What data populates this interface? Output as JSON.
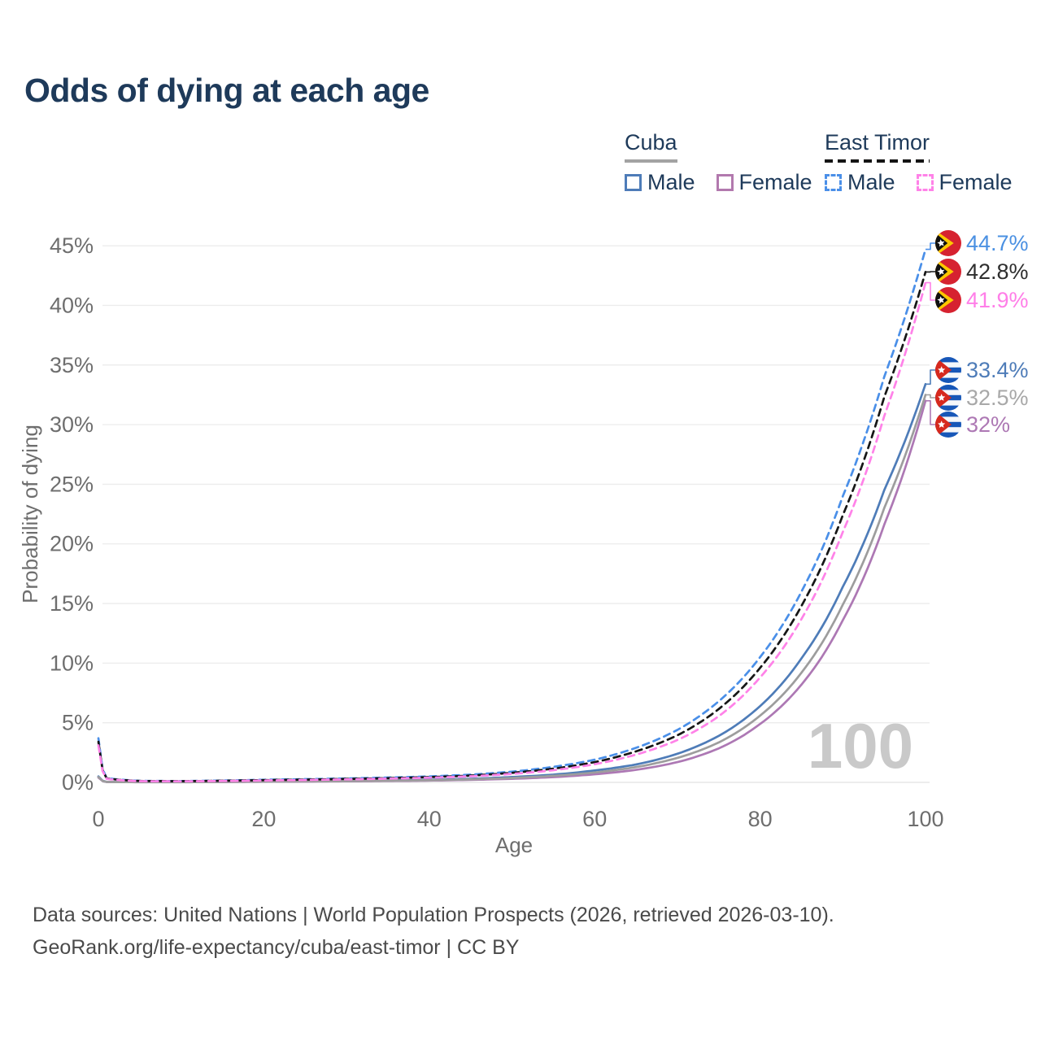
{
  "title": "Odds of dying at each age",
  "watermark": "100",
  "legend": {
    "groups": [
      {
        "name": "Cuba",
        "line_style": "solid",
        "underline_color": "#a3a3a3",
        "items": [
          {
            "label": "Male",
            "color": "#4e7cb8"
          },
          {
            "label": "Female",
            "color": "#b279ae"
          }
        ]
      },
      {
        "name": "East Timor",
        "line_style": "dashed",
        "underline_color": "#141414",
        "items": [
          {
            "label": "Male",
            "color": "#4a8fe8"
          },
          {
            "label": "Female",
            "color": "#ff82e8"
          }
        ]
      }
    ]
  },
  "chart_data": {
    "type": "line",
    "title": "Odds of dying at each age",
    "xlabel": "Age",
    "ylabel": "Probability of dying",
    "xlim": [
      0,
      100
    ],
    "ylim": [
      0,
      46
    ],
    "grid": "horizontal",
    "legend_position": "top-right",
    "x_ticks": {
      "values": [
        0,
        20,
        40,
        60,
        80,
        100
      ],
      "labels": [
        "0",
        "20",
        "40",
        "60",
        "80",
        "100"
      ]
    },
    "y_ticks": {
      "values": [
        0,
        5,
        10,
        15,
        20,
        25,
        30,
        35,
        40,
        45
      ],
      "labels": [
        "0%",
        "5%",
        "10%",
        "15%",
        "20%",
        "25%",
        "30%",
        "35%",
        "40%",
        "45%"
      ]
    },
    "anchor_ages": [
      0,
      1,
      5,
      10,
      20,
      30,
      40,
      45,
      50,
      55,
      60,
      65,
      70,
      75,
      80,
      85,
      90,
      95,
      100
    ],
    "series": [
      {
        "name": "Cuba — Male",
        "country": "Cuba",
        "sex": "Male",
        "color": "#4e7cb8",
        "label_color": "#4e7cb8",
        "dashed": false,
        "flag": "cuba",
        "end_label": "33.4%",
        "end_value": 33.4,
        "values": [
          0.5,
          0.04,
          0.02,
          0.02,
          0.09,
          0.13,
          0.22,
          0.3,
          0.45,
          0.65,
          1.0,
          1.5,
          2.4,
          3.9,
          6.4,
          10.4,
          16.4,
          24.5,
          33.4
        ]
      },
      {
        "name": "Cuba — Female",
        "country": "Cuba",
        "sex": "Female",
        "color": "#ad78b4",
        "label_color": "#ad78b4",
        "dashed": false,
        "flag": "cuba",
        "end_label": "32%",
        "end_value": 32.0,
        "values": [
          0.4,
          0.03,
          0.015,
          0.015,
          0.05,
          0.09,
          0.15,
          0.21,
          0.3,
          0.44,
          0.68,
          1.05,
          1.7,
          2.85,
          4.9,
          8.2,
          13.6,
          21.6,
          32.0
        ]
      },
      {
        "name": "Cuba — Both sexes",
        "country": "Cuba",
        "sex": "Both",
        "color": "#9d9d9d",
        "label_color": "#a8a8a8",
        "dashed": false,
        "flag": "cuba",
        "end_label": "32.5%",
        "end_value": 32.5,
        "values": [
          0.45,
          0.035,
          0.018,
          0.018,
          0.07,
          0.11,
          0.18,
          0.25,
          0.37,
          0.55,
          0.83,
          1.28,
          2.05,
          3.35,
          5.6,
          9.2,
          14.9,
          23.0,
          32.5
        ]
      },
      {
        "name": "East Timor — Male",
        "country": "East Timor",
        "sex": "Male",
        "color": "#4a8fe8",
        "label_color": "#4a90e2",
        "dashed": true,
        "flag": "east-timor",
        "end_label": "44.7%",
        "end_value": 44.7,
        "values": [
          3.7,
          0.35,
          0.13,
          0.11,
          0.22,
          0.33,
          0.5,
          0.65,
          0.9,
          1.3,
          1.9,
          2.9,
          4.4,
          6.8,
          10.5,
          16.0,
          24.0,
          34.0,
          44.7
        ]
      },
      {
        "name": "East Timor — Both sexes",
        "country": "East Timor",
        "sex": "Both",
        "color": "#161616",
        "label_color": "#2e2e2e",
        "dashed": true,
        "flag": "east-timor",
        "end_label": "42.8%",
        "end_value": 42.8,
        "values": [
          3.4,
          0.32,
          0.12,
          0.1,
          0.19,
          0.29,
          0.44,
          0.57,
          0.8,
          1.15,
          1.7,
          2.6,
          3.95,
          6.15,
          9.6,
          14.8,
          22.4,
          32.3,
          42.8
        ]
      },
      {
        "name": "East Timor — Female",
        "country": "East Timor",
        "sex": "Female",
        "color": "#ff82e8",
        "label_color": "#ff7ee8",
        "dashed": true,
        "flag": "east-timor",
        "end_label": "41.9%",
        "end_value": 41.9,
        "values": [
          3.1,
          0.29,
          0.1,
          0.09,
          0.16,
          0.25,
          0.39,
          0.51,
          0.71,
          1.02,
          1.52,
          2.33,
          3.55,
          5.55,
          8.8,
          13.7,
          21.0,
          30.7,
          41.9
        ]
      }
    ]
  },
  "footer": {
    "line1": "Data sources: United Nations | World Population Prospects (2026, retrieved 2026-03-10).",
    "line2": "GeoRank.org/life-expectancy/cuba/east-timor | CC BY"
  }
}
